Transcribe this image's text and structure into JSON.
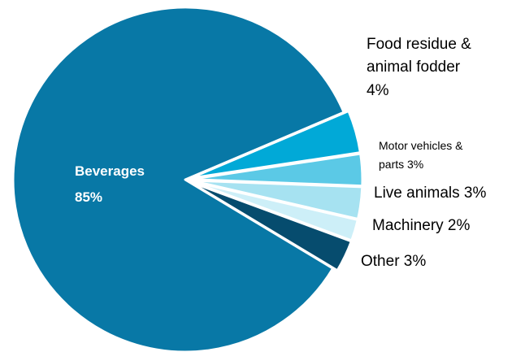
{
  "chart_data": {
    "type": "pie",
    "title": "",
    "slices": [
      {
        "label": "Beverages",
        "value": 85,
        "value_label": "85%",
        "color": "#0878A6"
      },
      {
        "label": "Food residue & animal fodder",
        "value": 4,
        "value_label": "4%",
        "color": "#01A9D7"
      },
      {
        "label": "Motor vehicles & parts",
        "value": 3,
        "value_label": "3%",
        "color": "#5BC9E6"
      },
      {
        "label": "Live animals",
        "value": 3,
        "value_label": "3%",
        "color": "#A6E2F1"
      },
      {
        "label": "Machinery",
        "value": 2,
        "value_label": "2%",
        "color": "#CDEFF8"
      },
      {
        "label": "Other",
        "value": 3,
        "value_label": "3%",
        "color": "#064C6E"
      }
    ],
    "label_text": {
      "beverages_name": "Beverages",
      "beverages_pct": "85%",
      "food_line1": "Food residue &",
      "food_line2": "animal fodder",
      "food_line3": "4%",
      "motor_line1": "Motor vehicles &",
      "motor_line2": "parts 3%",
      "live": "Live animals 3%",
      "machinery": "Machinery 2%",
      "other": "Other 3%"
    },
    "legend": "none"
  }
}
